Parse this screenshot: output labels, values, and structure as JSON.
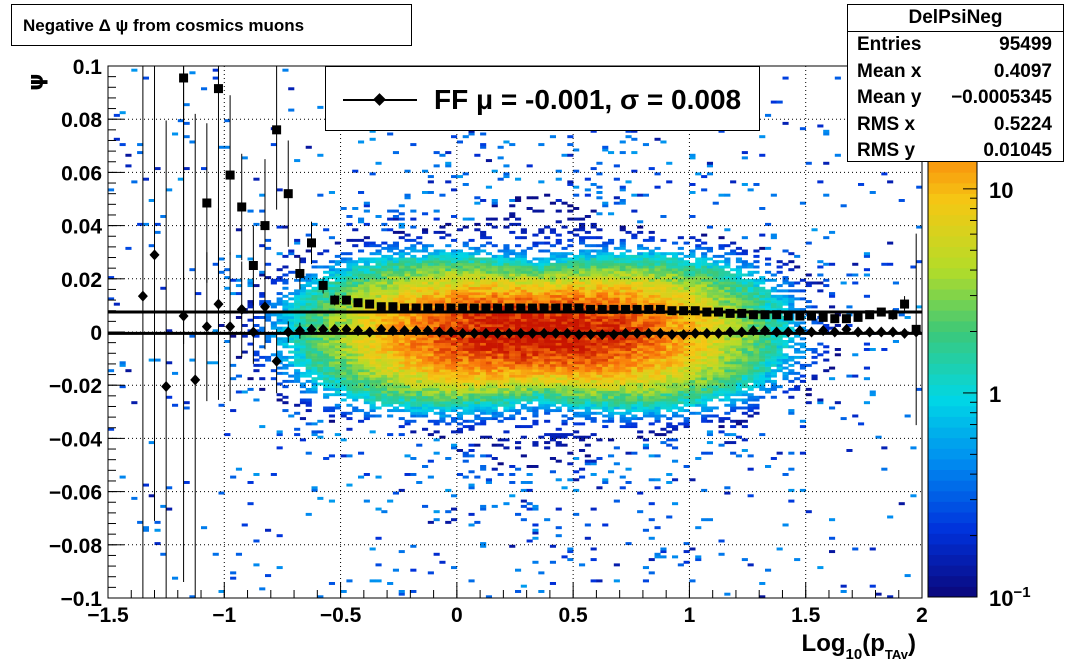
{
  "title": "Negative Δ ψ from cosmics muons",
  "stats": {
    "name": "DelPsiNeg",
    "rows": [
      {
        "key": "Entries",
        "value": "95499"
      },
      {
        "key": "Mean x",
        "value": "0.4097"
      },
      {
        "key": "Mean y",
        "value": "−0.0005345"
      },
      {
        "key": "RMS x",
        "value": "0.5224"
      },
      {
        "key": "RMS y",
        "value": "0.01045"
      }
    ]
  },
  "legend": {
    "label": "FF μ = -0.001, σ =   0.008"
  },
  "chart_data": {
    "type": "heatmap",
    "xlabel": "Log10(pTAv)",
    "xlabel_parts": {
      "main": "Log",
      "sub1": "10",
      "paren_open": "(p",
      "sub2": "TAv",
      "paren_close": ")"
    },
    "ylabel": "ψ",
    "xlim": [
      -1.5,
      2.0
    ],
    "ylim": [
      -0.1,
      0.1
    ],
    "x_ticks": [
      -1.5,
      -1,
      -0.5,
      0,
      0.5,
      1,
      1.5,
      2
    ],
    "x_tick_labels": [
      "−1.5",
      "−1",
      "−0.5",
      "0",
      "0.5",
      "1",
      "1.5",
      "2"
    ],
    "y_ticks": [
      -0.1,
      -0.08,
      -0.06,
      -0.04,
      -0.02,
      0,
      0.02,
      0.04,
      0.06,
      0.08,
      0.1
    ],
    "y_tick_labels": [
      "−0.1",
      "−0.08",
      "−0.06",
      "−0.04",
      "−0.02",
      "0",
      "0.02",
      "0.04",
      "0.06",
      "0.08",
      "0.1"
    ],
    "grid": true,
    "z_scale": "log",
    "z_range": [
      0.1,
      40
    ],
    "z_tick_labels": [
      {
        "value": 0.1,
        "base": "10",
        "exp": "−1"
      },
      {
        "value": 1,
        "base": "1",
        "exp": ""
      },
      {
        "value": 10,
        "base": "10",
        "exp": ""
      }
    ],
    "density_center": {
      "x": 0.35,
      "y": 0.0
    },
    "fit_lines": [
      {
        "name": "mean",
        "y": -0.0005
      },
      {
        "name": "sigma",
        "y": 0.0075
      }
    ],
    "mean_points": [
      {
        "x": -1.35,
        "y": 0.0135,
        "err": 0.13
      },
      {
        "x": -1.3,
        "y": 0.029,
        "err": 0.1
      },
      {
        "x": -1.25,
        "y": -0.0205,
        "err": 0.1
      },
      {
        "x": -1.175,
        "y": 0.006,
        "err": 0.1
      },
      {
        "x": -1.125,
        "y": -0.018,
        "err": 0.1
      },
      {
        "x": -1.075,
        "y": 0.002,
        "err": 0.028
      },
      {
        "x": -1.025,
        "y": 0.0105,
        "err": 0.036
      },
      {
        "x": -0.975,
        "y": 0.002,
        "err": 0.028
      },
      {
        "x": -0.925,
        "y": 0.0085,
        "err": 0.018
      },
      {
        "x": -0.875,
        "y": 0.0,
        "err": 0.012
      },
      {
        "x": -0.825,
        "y": 0.0095,
        "err": 0.016
      },
      {
        "x": -0.775,
        "y": -0.011,
        "err": 0.012
      },
      {
        "x": -0.725,
        "y": 0.0,
        "err": 0.004
      },
      {
        "x": -0.675,
        "y": 0.0005,
        "err": 0.003
      },
      {
        "x": -0.625,
        "y": 0.001,
        "err": 0.002
      },
      {
        "x": -0.575,
        "y": 0.001,
        "err": 0.0015
      },
      {
        "x": -0.525,
        "y": 0.001,
        "err": 0.001
      },
      {
        "x": -0.475,
        "y": 0.001,
        "err": 0.001
      },
      {
        "x": -0.425,
        "y": 0.0005,
        "err": 0.001
      },
      {
        "x": -0.375,
        "y": 0.0,
        "err": 0.001
      },
      {
        "x": -0.325,
        "y": 0.001,
        "err": 0.001
      },
      {
        "x": -0.275,
        "y": 0.0005,
        "err": 0.001
      },
      {
        "x": -0.225,
        "y": 0.0005,
        "err": 0.001
      },
      {
        "x": -0.175,
        "y": 0.0005,
        "err": 0.001
      },
      {
        "x": -0.125,
        "y": 0.0005,
        "err": 0.001
      },
      {
        "x": -0.075,
        "y": 0.0,
        "err": 0.001
      },
      {
        "x": -0.025,
        "y": 0.0,
        "err": 0.001
      },
      {
        "x": 0.025,
        "y": -0.0005,
        "err": 0.001
      },
      {
        "x": 0.075,
        "y": -0.0005,
        "err": 0.001
      },
      {
        "x": 0.125,
        "y": -0.0005,
        "err": 0.001
      },
      {
        "x": 0.175,
        "y": -0.0005,
        "err": 0.001
      },
      {
        "x": 0.225,
        "y": -0.0005,
        "err": 0.001
      },
      {
        "x": 0.275,
        "y": -0.0005,
        "err": 0.001
      },
      {
        "x": 0.325,
        "y": -0.0005,
        "err": 0.001
      },
      {
        "x": 0.375,
        "y": -0.0005,
        "err": 0.001
      },
      {
        "x": 0.425,
        "y": -0.0005,
        "err": 0.001
      },
      {
        "x": 0.475,
        "y": -0.0005,
        "err": 0.001
      },
      {
        "x": 0.525,
        "y": -0.001,
        "err": 0.001
      },
      {
        "x": 0.575,
        "y": -0.001,
        "err": 0.001
      },
      {
        "x": 0.625,
        "y": -0.001,
        "err": 0.001
      },
      {
        "x": 0.675,
        "y": -0.001,
        "err": 0.001
      },
      {
        "x": 0.725,
        "y": -0.0005,
        "err": 0.001
      },
      {
        "x": 0.775,
        "y": -0.0005,
        "err": 0.001
      },
      {
        "x": 0.825,
        "y": -0.0005,
        "err": 0.001
      },
      {
        "x": 0.875,
        "y": -0.0005,
        "err": 0.001
      },
      {
        "x": 0.925,
        "y": -0.001,
        "err": 0.001
      },
      {
        "x": 0.975,
        "y": -0.001,
        "err": 0.001
      },
      {
        "x": 1.025,
        "y": -0.0005,
        "err": 0.001
      },
      {
        "x": 1.075,
        "y": -0.0005,
        "err": 0.001
      },
      {
        "x": 1.125,
        "y": -0.0005,
        "err": 0.001
      },
      {
        "x": 1.175,
        "y": 0.0,
        "err": 0.001
      },
      {
        "x": 1.225,
        "y": 0.0,
        "err": 0.001
      },
      {
        "x": 1.275,
        "y": 0.0005,
        "err": 0.001
      },
      {
        "x": 1.325,
        "y": 0.0005,
        "err": 0.001
      },
      {
        "x": 1.375,
        "y": 0.0,
        "err": 0.001
      },
      {
        "x": 1.425,
        "y": 0.0,
        "err": 0.001
      },
      {
        "x": 1.475,
        "y": 0.0005,
        "err": 0.001
      },
      {
        "x": 1.525,
        "y": 0.0,
        "err": 0.001
      },
      {
        "x": 1.575,
        "y": 0.0005,
        "err": 0.001
      },
      {
        "x": 1.625,
        "y": 0.0,
        "err": 0.001
      },
      {
        "x": 1.675,
        "y": 0.001,
        "err": 0.001
      },
      {
        "x": 1.725,
        "y": 0.0,
        "err": 0.001
      },
      {
        "x": 1.775,
        "y": 0.0,
        "err": 0.001
      },
      {
        "x": 1.825,
        "y": 0.0,
        "err": 0.001
      },
      {
        "x": 1.875,
        "y": 0.0,
        "err": 0.001
      },
      {
        "x": 1.925,
        "y": -0.0005,
        "err": 0.001
      },
      {
        "x": 1.975,
        "y": 0.0,
        "err": 0.001
      }
    ],
    "rms_points": [
      {
        "x": -1.175,
        "y": 0.0955,
        "err": 0.1
      },
      {
        "x": -1.025,
        "y": 0.0915,
        "err": 0.1
      },
      {
        "x": -1.075,
        "y": 0.0485,
        "err": 0.03
      },
      {
        "x": -0.975,
        "y": 0.059,
        "err": 0.03
      },
      {
        "x": -0.925,
        "y": 0.047,
        "err": 0.02
      },
      {
        "x": -0.875,
        "y": 0.025,
        "err": 0.015
      },
      {
        "x": -0.825,
        "y": 0.04,
        "err": 0.025
      },
      {
        "x": -0.775,
        "y": 0.076,
        "err": 0.03
      },
      {
        "x": -0.725,
        "y": 0.052,
        "err": 0.02
      },
      {
        "x": -0.675,
        "y": 0.022,
        "err": 0.006
      },
      {
        "x": -0.625,
        "y": 0.0335,
        "err": 0.008
      },
      {
        "x": -0.575,
        "y": 0.0175,
        "err": 0.003
      },
      {
        "x": -0.525,
        "y": 0.012,
        "err": 0.002
      },
      {
        "x": -0.475,
        "y": 0.012,
        "err": 0.001
      },
      {
        "x": -0.425,
        "y": 0.011,
        "err": 0.001
      },
      {
        "x": -0.375,
        "y": 0.0105,
        "err": 0.001
      },
      {
        "x": -0.325,
        "y": 0.0095,
        "err": 0.001
      },
      {
        "x": -0.275,
        "y": 0.0095,
        "err": 0.001
      },
      {
        "x": -0.225,
        "y": 0.009,
        "err": 0.001
      },
      {
        "x": -0.175,
        "y": 0.009,
        "err": 0.001
      },
      {
        "x": -0.125,
        "y": 0.009,
        "err": 0.001
      },
      {
        "x": -0.075,
        "y": 0.009,
        "err": 0.001
      },
      {
        "x": -0.025,
        "y": 0.009,
        "err": 0.001
      },
      {
        "x": 0.025,
        "y": 0.009,
        "err": 0.001
      },
      {
        "x": 0.075,
        "y": 0.009,
        "err": 0.001
      },
      {
        "x": 0.125,
        "y": 0.009,
        "err": 0.001
      },
      {
        "x": 0.175,
        "y": 0.009,
        "err": 0.001
      },
      {
        "x": 0.225,
        "y": 0.009,
        "err": 0.001
      },
      {
        "x": 0.275,
        "y": 0.009,
        "err": 0.001
      },
      {
        "x": 0.325,
        "y": 0.009,
        "err": 0.001
      },
      {
        "x": 0.375,
        "y": 0.009,
        "err": 0.001
      },
      {
        "x": 0.425,
        "y": 0.009,
        "err": 0.001
      },
      {
        "x": 0.475,
        "y": 0.009,
        "err": 0.001
      },
      {
        "x": 0.525,
        "y": 0.009,
        "err": 0.001
      },
      {
        "x": 0.575,
        "y": 0.0085,
        "err": 0.001
      },
      {
        "x": 0.625,
        "y": 0.0085,
        "err": 0.001
      },
      {
        "x": 0.675,
        "y": 0.0085,
        "err": 0.001
      },
      {
        "x": 0.725,
        "y": 0.0085,
        "err": 0.001
      },
      {
        "x": 0.775,
        "y": 0.0085,
        "err": 0.001
      },
      {
        "x": 0.825,
        "y": 0.0085,
        "err": 0.001
      },
      {
        "x": 0.875,
        "y": 0.0085,
        "err": 0.001
      },
      {
        "x": 0.925,
        "y": 0.008,
        "err": 0.001
      },
      {
        "x": 0.975,
        "y": 0.008,
        "err": 0.001
      },
      {
        "x": 1.025,
        "y": 0.008,
        "err": 0.001
      },
      {
        "x": 1.075,
        "y": 0.0075,
        "err": 0.001
      },
      {
        "x": 1.125,
        "y": 0.0075,
        "err": 0.001
      },
      {
        "x": 1.175,
        "y": 0.007,
        "err": 0.001
      },
      {
        "x": 1.225,
        "y": 0.007,
        "err": 0.001
      },
      {
        "x": 1.275,
        "y": 0.0065,
        "err": 0.001
      },
      {
        "x": 1.325,
        "y": 0.0065,
        "err": 0.001
      },
      {
        "x": 1.375,
        "y": 0.0065,
        "err": 0.001
      },
      {
        "x": 1.425,
        "y": 0.006,
        "err": 0.001
      },
      {
        "x": 1.475,
        "y": 0.006,
        "err": 0.001
      },
      {
        "x": 1.525,
        "y": 0.006,
        "err": 0.001
      },
      {
        "x": 1.575,
        "y": 0.0055,
        "err": 0.001
      },
      {
        "x": 1.625,
        "y": 0.005,
        "err": 0.001
      },
      {
        "x": 1.675,
        "y": 0.005,
        "err": 0.001
      },
      {
        "x": 1.725,
        "y": 0.0055,
        "err": 0.001
      },
      {
        "x": 1.775,
        "y": 0.0065,
        "err": 0.001
      },
      {
        "x": 1.825,
        "y": 0.0075,
        "err": 0.001
      },
      {
        "x": 1.875,
        "y": 0.0065,
        "err": 0.002
      },
      {
        "x": 1.925,
        "y": 0.0105,
        "err": 0.003
      },
      {
        "x": 1.975,
        "y": 0.001,
        "err": 0.036
      }
    ]
  }
}
